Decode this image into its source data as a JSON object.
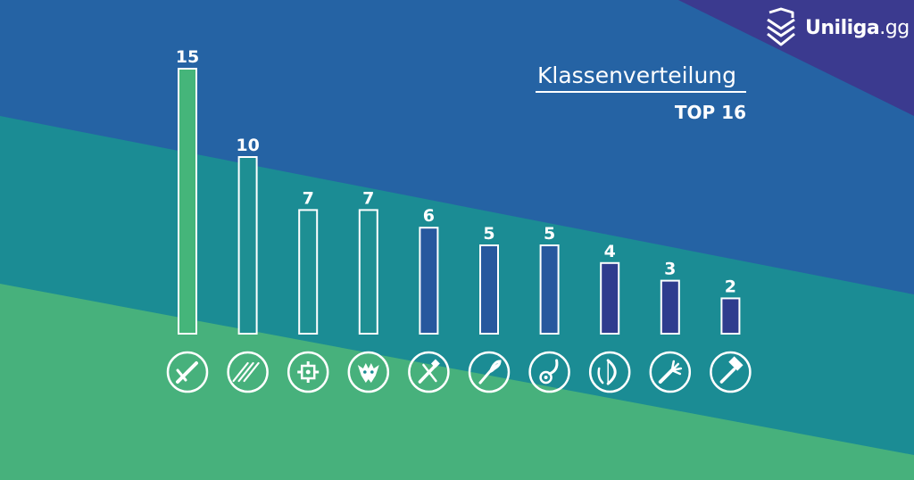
{
  "brand": {
    "name": "Uniliga",
    "tld": ".gg"
  },
  "chart_data": {
    "type": "bar",
    "title": "Klassenverteilung",
    "subtitle": "TOP 16",
    "values": [
      15,
      10,
      7,
      7,
      6,
      5,
      5,
      4,
      3,
      2
    ],
    "icons": [
      "warrior-sword-icon",
      "druid-claw-icon",
      "rogue-shuriken-icon",
      "demon-hunter-icon",
      "paladin-icon",
      "priest-icon",
      "shaman-icon",
      "hunter-bow-icon",
      "mage-hand-icon",
      "warlock-hammer-icon"
    ],
    "bar_colors": [
      "#45b57a",
      "#1e8f93",
      "#1e8f93",
      "#1e8f93",
      "#27589e",
      "#27589e",
      "#27589e",
      "#2f3c8e",
      "#2f3c8e",
      "#2f3c8e"
    ],
    "ylim": [
      0,
      15
    ]
  },
  "colors": {
    "purple": "#3b3a8f",
    "blue": "#2563a4",
    "teal": "#1b8c94",
    "green": "#47b17c",
    "bar_stroke": "#ffffff"
  }
}
